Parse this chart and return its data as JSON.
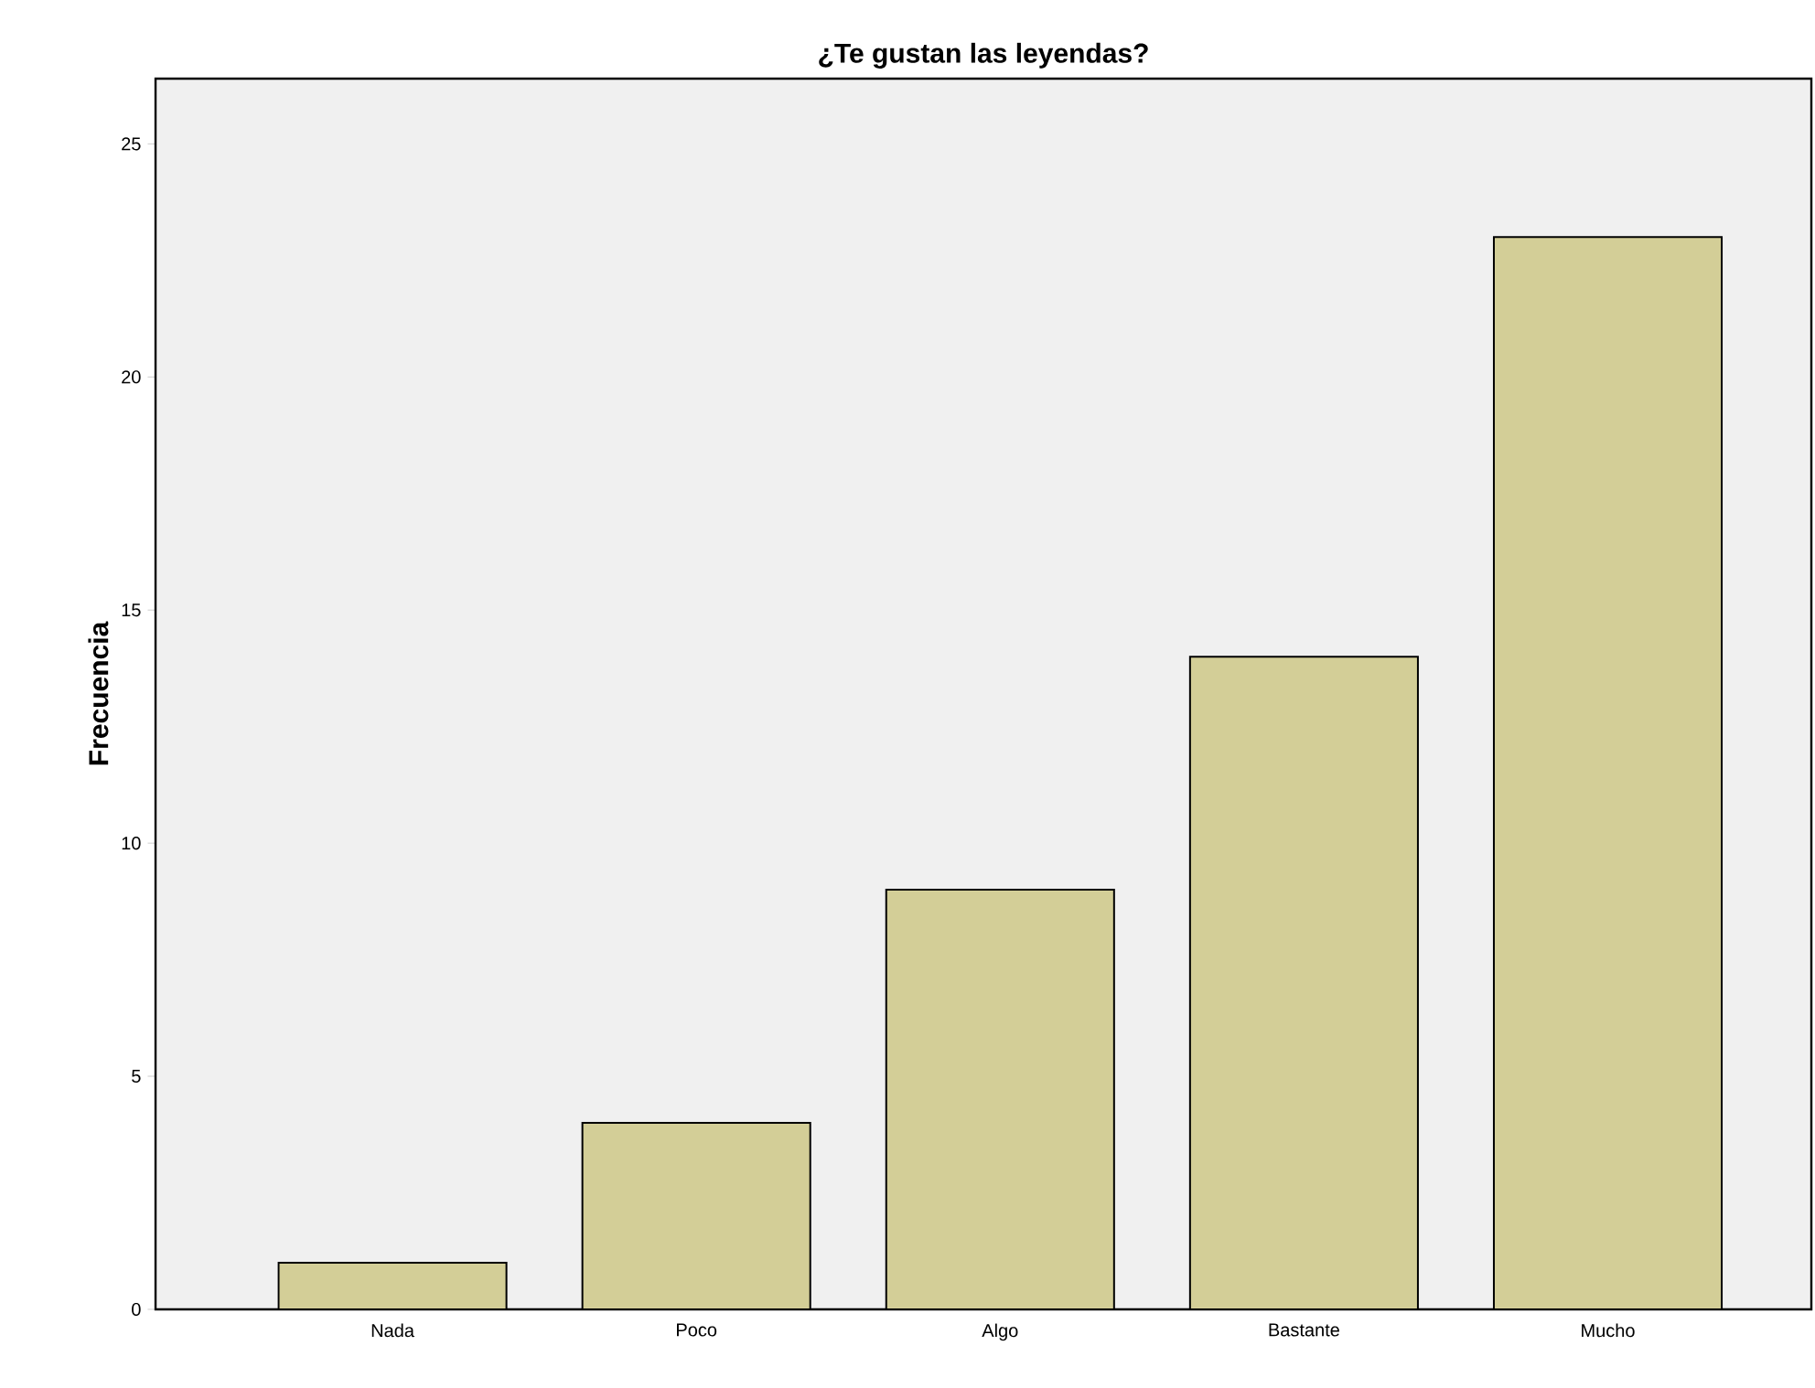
{
  "chart_data": {
    "type": "bar",
    "title": "¿Te gustan las leyendas?",
    "ylabel": "Frecuencia",
    "categories": [
      "Nada",
      "Poco",
      "Algo",
      "Bastante",
      "Mucho"
    ],
    "values": [
      1,
      4,
      9,
      14,
      23
    ],
    "color": "#d3ce97",
    "ylim": [
      0,
      26.4
    ],
    "yticks": [
      0,
      5,
      10,
      15,
      20,
      25
    ]
  }
}
